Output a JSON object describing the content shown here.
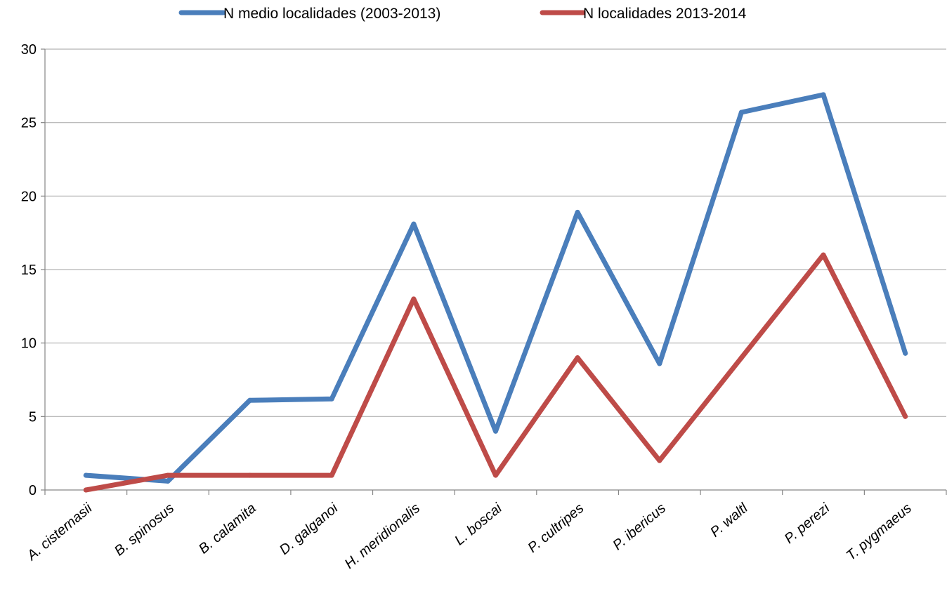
{
  "chart_data": {
    "type": "line",
    "categories": [
      "A. cisternasii",
      "B. spinosus",
      "B. calamita",
      "D. galganoi",
      "H. meridionalis",
      "L. boscai",
      "P. cultripes",
      "P. ibericus",
      "P. waltl",
      "P. perezi",
      "T. pygmaeus"
    ],
    "series": [
      {
        "name": "N medio localidades (2003-2013)",
        "color": "#4a7ebb",
        "values": [
          1.0,
          0.6,
          6.1,
          6.2,
          18.1,
          4.0,
          18.9,
          8.6,
          25.7,
          26.9,
          9.3
        ]
      },
      {
        "name": "N localidades 2013-2014",
        "color": "#be4b48",
        "values": [
          0,
          1,
          1,
          1,
          13,
          1,
          9,
          2,
          9,
          16,
          5
        ]
      }
    ],
    "title": "",
    "xlabel": "",
    "ylabel": "",
    "ylim": [
      0,
      30
    ],
    "yticks": [
      0,
      5,
      10,
      15,
      20,
      25,
      30
    ],
    "grid": true,
    "legend_position": "top"
  }
}
